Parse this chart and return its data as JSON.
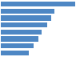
{
  "values": [
    1.0,
    0.72,
    0.67,
    0.62,
    0.55,
    0.5,
    0.44,
    0.38
  ],
  "bar_color": "#4e87c4",
  "background_color": "#ffffff",
  "bar_height": 0.72,
  "grid_color": "#e0e0e0"
}
